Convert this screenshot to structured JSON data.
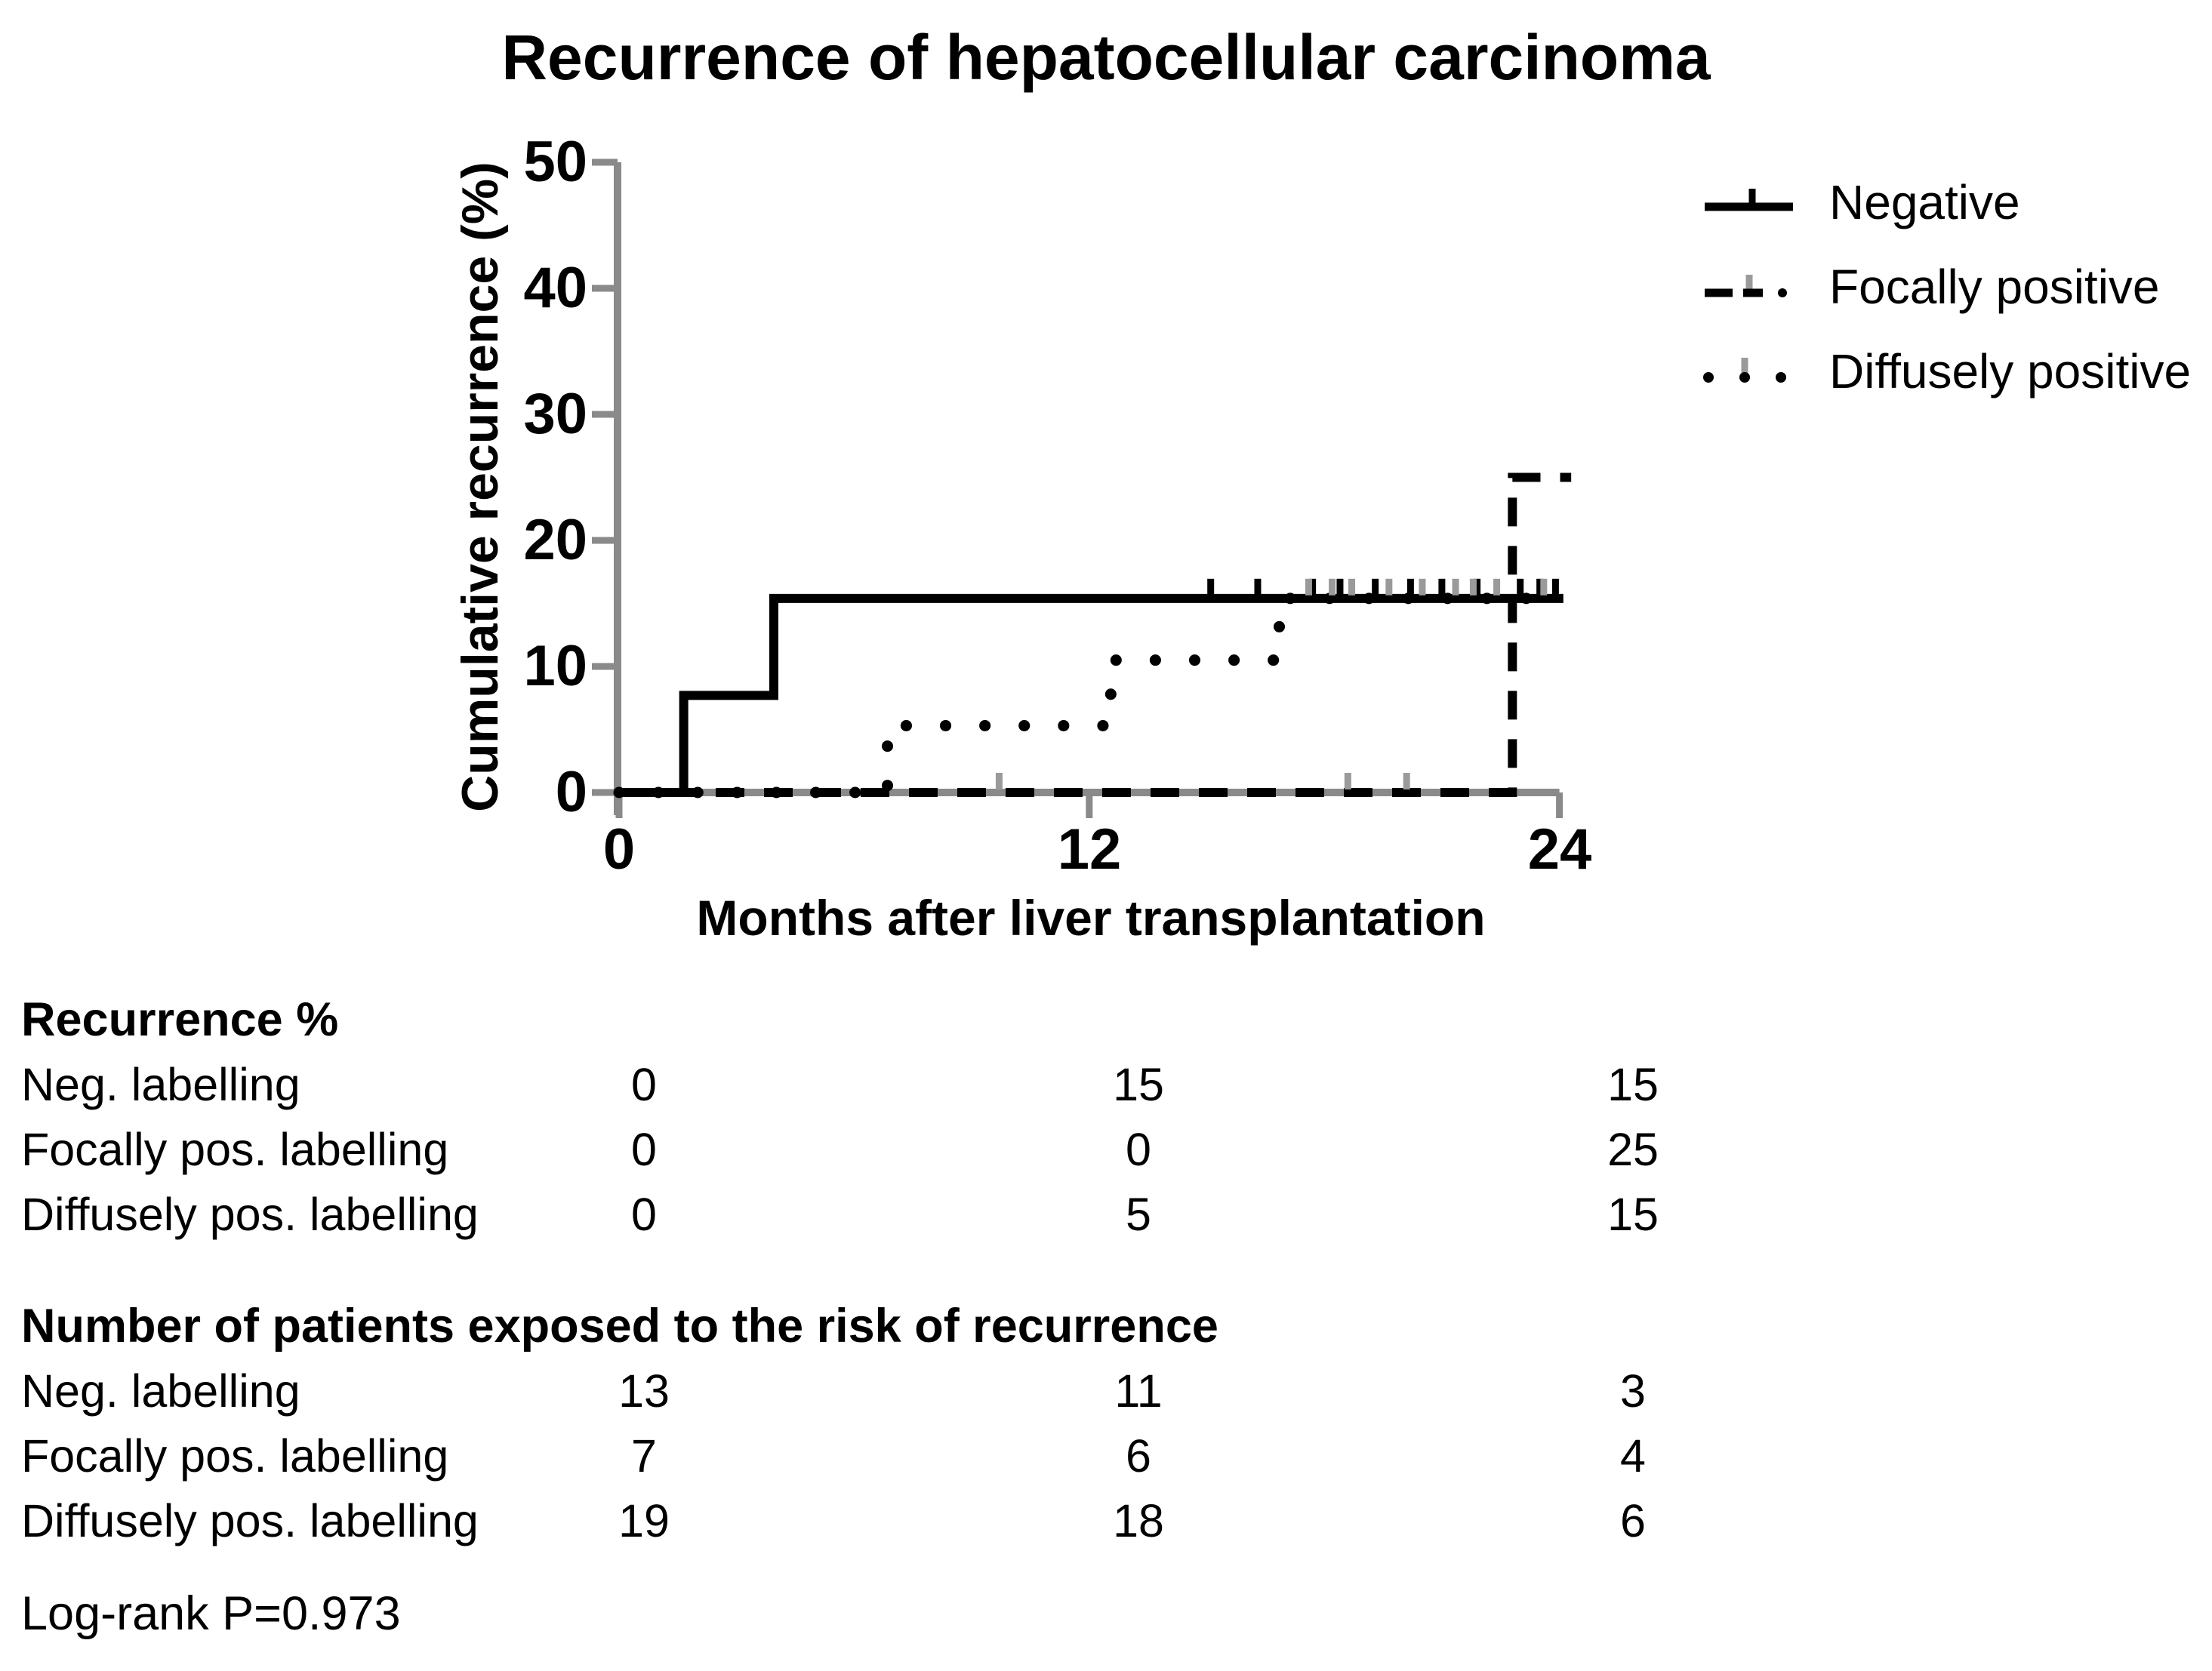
{
  "title": "Recurrence of hepatocellular carcinoma",
  "colors": {
    "line": "#000000",
    "axis": "#8a8a8a",
    "censor_gray": "#9a9a9a",
    "text": "#000000",
    "background": "#ffffff"
  },
  "chart_data": {
    "type": "line",
    "subtype": "kaplan-meier-step",
    "title": "Recurrence of hepatocellular carcinoma",
    "xlabel": "Months after liver transplantation",
    "ylabel": "Cumulative recurrence (%)",
    "xlim": [
      0,
      24
    ],
    "ylim": [
      0,
      50
    ],
    "xticks": [
      0,
      12,
      24
    ],
    "yticks": [
      0,
      10,
      20,
      30,
      40,
      50
    ],
    "grid": false,
    "legend_position": "right",
    "series": [
      {
        "name": "Negative",
        "line_style": "solid",
        "color": "#000000",
        "censor_color": "#000000",
        "steps": [
          [
            0,
            0
          ],
          [
            1.65,
            0
          ],
          [
            1.65,
            7.7
          ],
          [
            3.95,
            7.7
          ],
          [
            3.95,
            15.4
          ],
          [
            24.1,
            15.4
          ]
        ],
        "censor_marks_months": [
          15.1,
          16.3,
          17.7,
          18.4,
          19.3,
          20.2,
          21.0,
          21.9,
          23.0,
          23.5,
          23.9
        ]
      },
      {
        "name": "Diffusely positive",
        "line_style": "dotted",
        "color": "#000000",
        "censor_color": "#9a9a9a",
        "steps": [
          [
            0,
            0
          ],
          [
            6.85,
            0
          ],
          [
            6.85,
            5.3
          ],
          [
            12.55,
            5.3
          ],
          [
            12.55,
            10.5
          ],
          [
            16.85,
            10.5
          ],
          [
            16.85,
            15.4
          ],
          [
            24.1,
            15.4
          ]
        ],
        "censor_marks_months": [
          17.6,
          18.2,
          18.7,
          19.65,
          20.5,
          21.35,
          21.8,
          22.4,
          23.6
        ]
      },
      {
        "name": "Focally positive",
        "line_style": "dashed",
        "color": "#000000",
        "censor_color": "#9a9a9a",
        "steps": [
          [
            0,
            0
          ],
          [
            22.8,
            0
          ],
          [
            22.8,
            25
          ],
          [
            24.3,
            25
          ]
        ],
        "censor_marks_months": [
          9.7,
          18.6,
          20.1
        ]
      }
    ]
  },
  "legend": {
    "items": [
      {
        "label": "Negative",
        "line_style": "solid"
      },
      {
        "label": "Focally positive",
        "line_style": "dashed"
      },
      {
        "label": "Diffusely positive",
        "line_style": "dotted"
      }
    ]
  },
  "tables": {
    "recurrence": {
      "header": "Recurrence %",
      "timepoints_months": [
        0,
        12,
        24
      ],
      "rows": [
        {
          "label": "Neg. labelling",
          "values": [
            "0",
            "15",
            "15"
          ]
        },
        {
          "label": "Focally pos. labelling",
          "values": [
            "0",
            "0",
            "25"
          ]
        },
        {
          "label": "Diffusely pos. labelling",
          "values": [
            "0",
            "5",
            "15"
          ]
        }
      ]
    },
    "patients_at_risk": {
      "header": "Number of patients exposed to the risk of recurrence",
      "timepoints_months": [
        0,
        12,
        24
      ],
      "rows": [
        {
          "label": "Neg. labelling",
          "values": [
            "13",
            "11",
            "3"
          ]
        },
        {
          "label": "Focally pos. labelling",
          "values": [
            "7",
            "6",
            "4"
          ]
        },
        {
          "label": "Diffusely pos. labelling",
          "values": [
            "19",
            "18",
            "6"
          ]
        }
      ]
    }
  },
  "footer": {
    "logrank": "Log-rank P=0.973"
  }
}
